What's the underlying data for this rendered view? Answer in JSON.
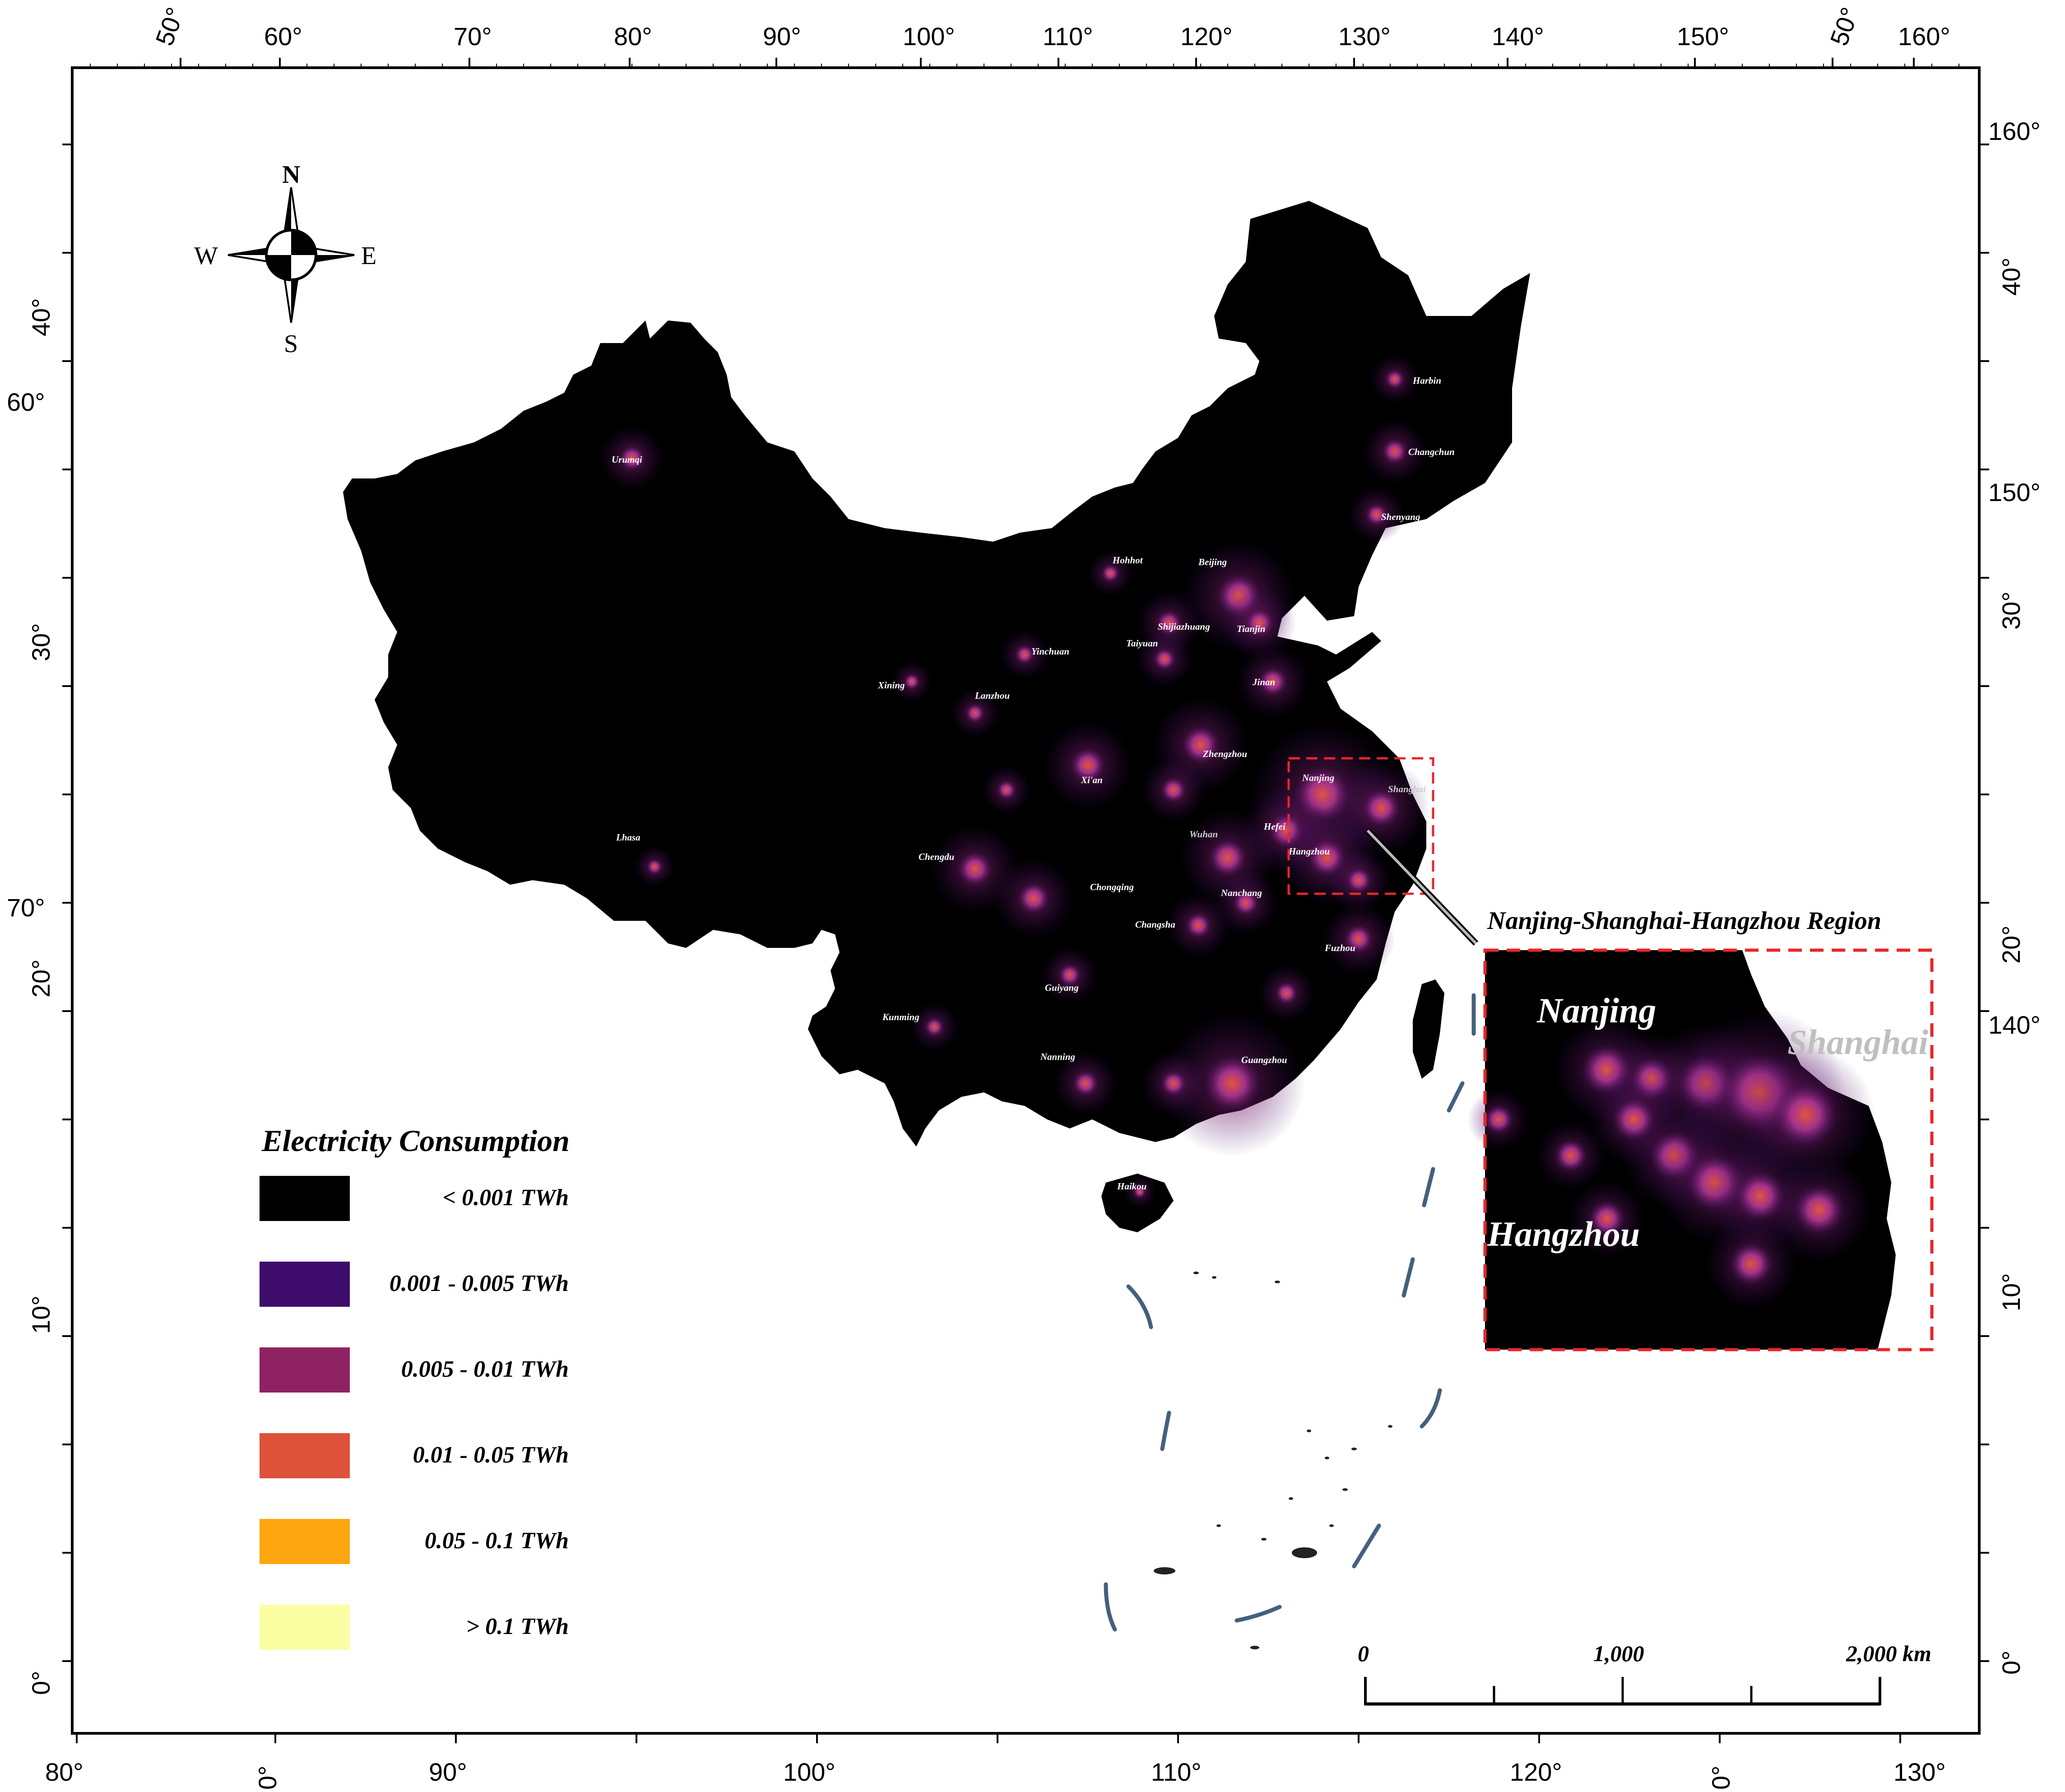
{
  "map": {
    "colors": {
      "background": "#000000",
      "frame": "#000000",
      "inset_border": "#e8262a",
      "leader": "#555555",
      "dash_line": "#44607e",
      "glow_purple": "#b93a9a",
      "glow_orange": "#e8593a"
    },
    "compass": {
      "n": "N",
      "s": "S",
      "e": "E",
      "w": "W"
    },
    "graticule": {
      "top": [
        "50°",
        "60°",
        "70°",
        "80°",
        "90°",
        "100°",
        "110°",
        "120°",
        "130°",
        "140°",
        "150°",
        "50°",
        "160°"
      ],
      "bottom": [
        "80°",
        "0°",
        "90°",
        "100°",
        "110°",
        "120°",
        "0°",
        "130°"
      ],
      "left": [
        "40°",
        "60°",
        "30°",
        "70°",
        "20°",
        "10°",
        "0°"
      ],
      "right": [
        "160°",
        "40°",
        "150°",
        "30°",
        "20°",
        "140°",
        "10°",
        "0°"
      ]
    },
    "cities": [
      {
        "name": "Urumqi"
      },
      {
        "name": "Harbin"
      },
      {
        "name": "Changchun"
      },
      {
        "name": "Shenyang"
      },
      {
        "name": "Hohhot"
      },
      {
        "name": "Beijing"
      },
      {
        "name": "Tianjin"
      },
      {
        "name": "Shijiazhuang"
      },
      {
        "name": "Taiyuan"
      },
      {
        "name": "Yinchuan"
      },
      {
        "name": "Jinan"
      },
      {
        "name": "Xining"
      },
      {
        "name": "Lanzhou"
      },
      {
        "name": "Zhengzhou"
      },
      {
        "name": "Xi'an"
      },
      {
        "name": "Nanjing"
      },
      {
        "name": "Shanghai"
      },
      {
        "name": "Hefei"
      },
      {
        "name": "Hangzhou"
      },
      {
        "name": "Wuhan"
      },
      {
        "name": "Lhasa"
      },
      {
        "name": "Chengdu"
      },
      {
        "name": "Chongqing"
      },
      {
        "name": "Nanchang"
      },
      {
        "name": "Changsha"
      },
      {
        "name": "Fuzhou"
      },
      {
        "name": "Guiyang"
      },
      {
        "name": "Kunming"
      },
      {
        "name": "Nanning"
      },
      {
        "name": "Guangzhou"
      },
      {
        "name": "Haikou"
      }
    ],
    "inset": {
      "title": "Nanjing-Shanghai-Hangzhou Region",
      "cities": {
        "nanjing": "Nanjing",
        "shanghai": "Shanghai",
        "hangzhou": "Hangzhou"
      }
    },
    "scale_bar": {
      "zero": "0",
      "mid": "1,000",
      "end": "2,000  km"
    },
    "legend": {
      "title": "Electricity Consumption",
      "items": [
        {
          "label": "< 0.001 TWh",
          "color": "#000000"
        },
        {
          "label": "0.001 - 0.005 TWh",
          "color": "#3e0c6b"
        },
        {
          "label": "0.005 - 0.01 TWh",
          "color": "#8e2262"
        },
        {
          "label": "0.01 - 0.05 TWh",
          "color": "#de513b"
        },
        {
          "label": "0.05 - 0.1 TWh",
          "color": "#fca50e"
        },
        {
          "label": "> 0.1 TWh",
          "color": "#fcfea4"
        }
      ]
    }
  }
}
